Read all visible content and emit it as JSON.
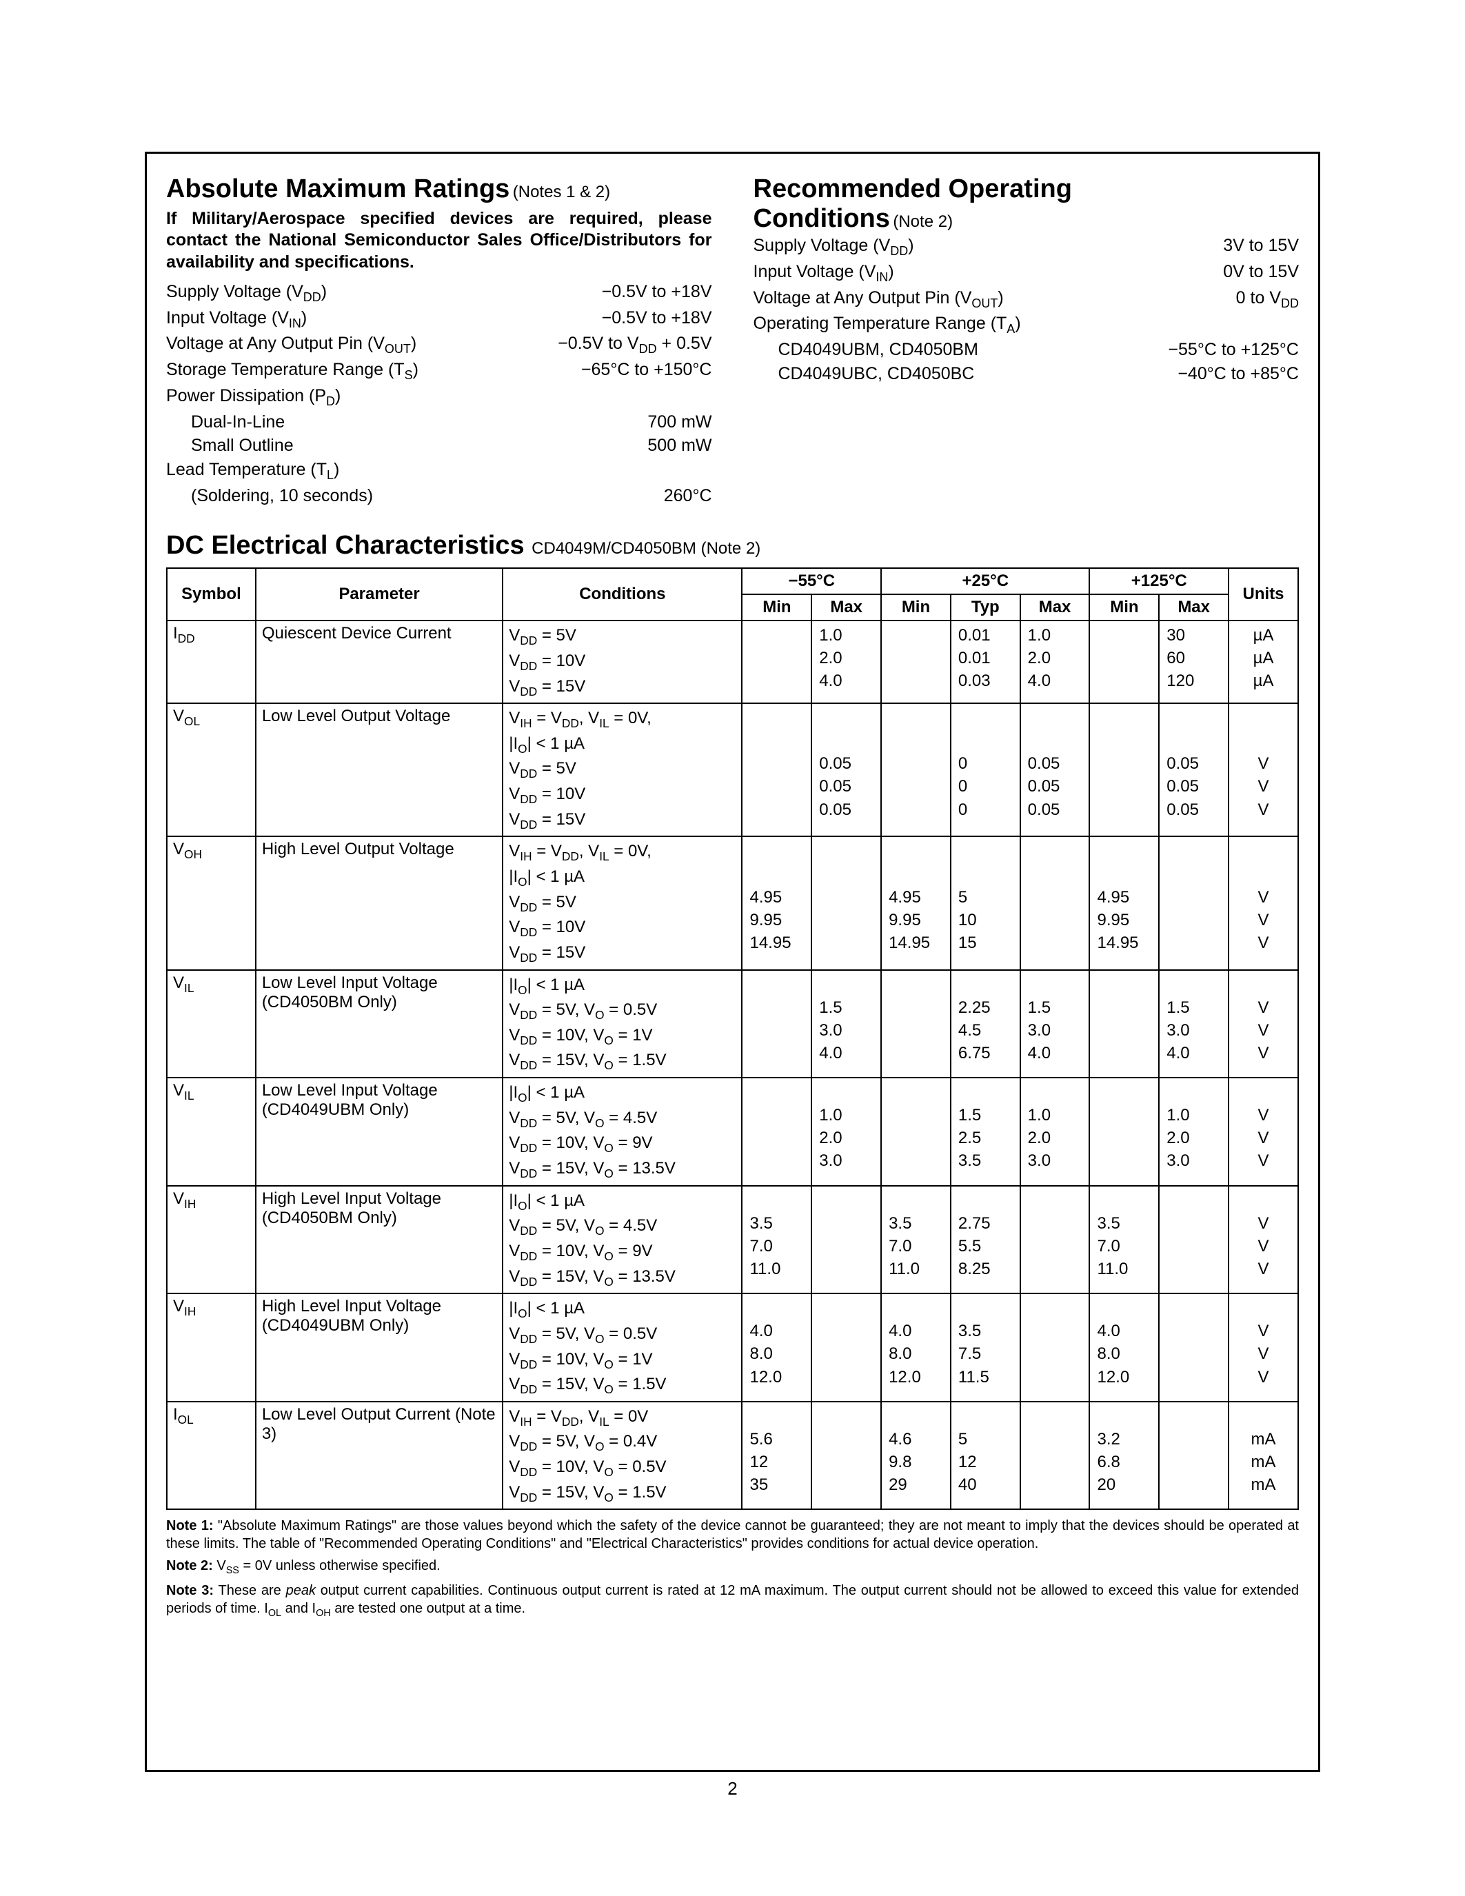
{
  "page_number": "2",
  "amr": {
    "title": "Absolute Maximum Ratings",
    "title_note": "(Notes 1 & 2)",
    "intro": "If Military/Aerospace specified devices are required, please contact the National Semiconductor Sales Office/Distributors for availability and specifications.",
    "rows": [
      {
        "k": "Supply Voltage (V",
        "ksub": "DD",
        "kend": ")",
        "v": "−0.5V to +18V"
      },
      {
        "k": "Input Voltage (V",
        "ksub": "IN",
        "kend": ")",
        "v": "−0.5V to +18V"
      },
      {
        "k": "Voltage at Any Output Pin (V",
        "ksub": "OUT",
        "kend": ")",
        "v": "−0.5V to V",
        "vsub": "DD",
        "vend": " + 0.5V"
      },
      {
        "k": "Storage Temperature Range (T",
        "ksub": "S",
        "kend": ")",
        "v": "−65°C to +150°C"
      },
      {
        "k": "Power Dissipation (P",
        "ksub": "D",
        "kend": ")",
        "v": ""
      },
      {
        "k": "Dual-In-Line",
        "indent": true,
        "v": "700 mW"
      },
      {
        "k": "Small Outline",
        "indent": true,
        "v": "500 mW"
      },
      {
        "k": "Lead Temperature (T",
        "ksub": "L",
        "kend": ")",
        "v": ""
      },
      {
        "k": "(Soldering, 10 seconds)",
        "indent": true,
        "v": "260°C"
      }
    ]
  },
  "roc": {
    "title": "Recommended Operating",
    "title2": "Conditions",
    "title_note": "(Note 2)",
    "rows": [
      {
        "k": "Supply Voltage (V",
        "ksub": "DD",
        "kend": ")",
        "v": "3V to 15V"
      },
      {
        "k": "Input Voltage (V",
        "ksub": "IN",
        "kend": ")",
        "v": "0V to 15V"
      },
      {
        "k": "Voltage at Any Output Pin (V",
        "ksub": "OUT",
        "kend": ")",
        "v": "0 to V",
        "vsub": "DD"
      },
      {
        "k": "Operating Temperature Range (T",
        "ksub": "A",
        "kend": ")",
        "v": ""
      },
      {
        "k": "CD4049UBM, CD4050BM",
        "indent": true,
        "v": "−55°C to +125°C"
      },
      {
        "k": "CD4049UBC, CD4050BC",
        "indent": true,
        "v": "−40°C to +85°C"
      }
    ]
  },
  "dc": {
    "title": "DC Electrical Characteristics",
    "title_note": "CD4049M/CD4050BM (Note 2)",
    "headers": {
      "symbol": "Symbol",
      "parameter": "Parameter",
      "conditions": "Conditions",
      "t1": "−55°C",
      "t2": "+25°C",
      "t3": "+125°C",
      "units": "Units",
      "min": "Min",
      "typ": "Typ",
      "max": "Max"
    },
    "rows": [
      {
        "sym": "I",
        "symsub": "DD",
        "param": "Quiescent Device Current",
        "cond": [
          {
            "t": "V",
            "s": "DD",
            "r": " = 5V"
          },
          {
            "t": "V",
            "s": "DD",
            "r": " = 10V"
          },
          {
            "t": "V",
            "s": "DD",
            "r": " = 15V"
          }
        ],
        "m55min": [
          "",
          "",
          ""
        ],
        "m55max": [
          "1.0",
          "2.0",
          "4.0"
        ],
        "p25min": [
          "",
          "",
          ""
        ],
        "p25typ": [
          "0.01",
          "0.01",
          "0.03"
        ],
        "p25max": [
          "1.0",
          "2.0",
          "4.0"
        ],
        "p125min": [
          "",
          "",
          ""
        ],
        "p125max": [
          "30",
          "60",
          "120"
        ],
        "units": [
          "µA",
          "µA",
          "µA"
        ]
      },
      {
        "sym": "V",
        "symsub": "OL",
        "param": "Low Level Output Voltage",
        "cond": [
          {
            "raw": "V<span class='sub'>IH</span> = V<span class='sub'>DD</span>, V<span class='sub'>IL</span> = 0V,"
          },
          {
            "raw": "|I<span class='sub'>O</span>| < 1 µA"
          },
          {
            "t": "V",
            "s": "DD",
            "r": " = 5V"
          },
          {
            "t": "V",
            "s": "DD",
            "r": " = 10V"
          },
          {
            "t": "V",
            "s": "DD",
            "r": " = 15V"
          }
        ],
        "m55min": [
          "",
          "",
          "",
          "",
          ""
        ],
        "m55max": [
          "",
          "",
          "0.05",
          "0.05",
          "0.05"
        ],
        "p25min": [
          "",
          "",
          "",
          "",
          ""
        ],
        "p25typ": [
          "",
          "",
          "0",
          "0",
          "0"
        ],
        "p25max": [
          "",
          "",
          "0.05",
          "0.05",
          "0.05"
        ],
        "p125min": [
          "",
          "",
          "",
          "",
          ""
        ],
        "p125max": [
          "",
          "",
          "0.05",
          "0.05",
          "0.05"
        ],
        "units": [
          "",
          "",
          "V",
          "V",
          "V"
        ]
      },
      {
        "sym": "V",
        "symsub": "OH",
        "param": "High Level Output Voltage",
        "cond": [
          {
            "raw": "V<span class='sub'>IH</span> = V<span class='sub'>DD</span>, V<span class='sub'>IL</span> = 0V,"
          },
          {
            "raw": "|I<span class='sub'>O</span>| < 1 µA"
          },
          {
            "t": "V",
            "s": "DD",
            "r": " = 5V"
          },
          {
            "t": "V",
            "s": "DD",
            "r": " = 10V"
          },
          {
            "t": "V",
            "s": "DD",
            "r": " = 15V"
          }
        ],
        "m55min": [
          "",
          "",
          "4.95",
          "9.95",
          "14.95"
        ],
        "m55max": [
          "",
          "",
          "",
          "",
          ""
        ],
        "p25min": [
          "",
          "",
          "4.95",
          "9.95",
          "14.95"
        ],
        "p25typ": [
          "",
          "",
          "5",
          "10",
          "15"
        ],
        "p25max": [
          "",
          "",
          "",
          "",
          ""
        ],
        "p125min": [
          "",
          "",
          "4.95",
          "9.95",
          "14.95"
        ],
        "p125max": [
          "",
          "",
          "",
          "",
          ""
        ],
        "units": [
          "",
          "",
          "V",
          "V",
          "V"
        ]
      },
      {
        "sym": "V",
        "symsub": "IL",
        "param": "Low Level Input Voltage (CD4050BM Only)",
        "cond": [
          {
            "raw": "|I<span class='sub'>O</span>| < 1 µA"
          },
          {
            "raw": "V<span class='sub'>DD</span> = 5V, V<span class='sub'>O</span> = 0.5V"
          },
          {
            "raw": "V<span class='sub'>DD</span> = 10V, V<span class='sub'>O</span> = 1V"
          },
          {
            "raw": "V<span class='sub'>DD</span> = 15V, V<span class='sub'>O</span> = 1.5V"
          }
        ],
        "m55min": [
          "",
          "",
          "",
          ""
        ],
        "m55max": [
          "",
          "1.5",
          "3.0",
          "4.0"
        ],
        "p25min": [
          "",
          "",
          "",
          ""
        ],
        "p25typ": [
          "",
          "2.25",
          "4.5",
          "6.75"
        ],
        "p25max": [
          "",
          "1.5",
          "3.0",
          "4.0"
        ],
        "p125min": [
          "",
          "",
          "",
          ""
        ],
        "p125max": [
          "",
          "1.5",
          "3.0",
          "4.0"
        ],
        "units": [
          "",
          "V",
          "V",
          "V"
        ]
      },
      {
        "sym": "V",
        "symsub": "IL",
        "param": "Low Level Input Voltage (CD4049UBM Only)",
        "cond": [
          {
            "raw": "|I<span class='sub'>O</span>| < 1 µA"
          },
          {
            "raw": "V<span class='sub'>DD</span> = 5V, V<span class='sub'>O</span> = 4.5V"
          },
          {
            "raw": "V<span class='sub'>DD</span> = 10V, V<span class='sub'>O</span> = 9V"
          },
          {
            "raw": "V<span class='sub'>DD</span> = 15V, V<span class='sub'>O</span> = 13.5V"
          }
        ],
        "m55min": [
          "",
          "",
          "",
          ""
        ],
        "m55max": [
          "",
          "1.0",
          "2.0",
          "3.0"
        ],
        "p25min": [
          "",
          "",
          "",
          ""
        ],
        "p25typ": [
          "",
          "1.5",
          "2.5",
          "3.5"
        ],
        "p25max": [
          "",
          "1.0",
          "2.0",
          "3.0"
        ],
        "p125min": [
          "",
          "",
          "",
          ""
        ],
        "p125max": [
          "",
          "1.0",
          "2.0",
          "3.0"
        ],
        "units": [
          "",
          "V",
          "V",
          "V"
        ]
      },
      {
        "sym": "V",
        "symsub": "IH",
        "param": "High Level Input Voltage (CD4050BM Only)",
        "cond": [
          {
            "raw": "|I<span class='sub'>O</span>| < 1 µA"
          },
          {
            "raw": "V<span class='sub'>DD</span> = 5V, V<span class='sub'>O</span> = 4.5V"
          },
          {
            "raw": "V<span class='sub'>DD</span> = 10V, V<span class='sub'>O</span> = 9V"
          },
          {
            "raw": "V<span class='sub'>DD</span> = 15V, V<span class='sub'>O</span> = 13.5V"
          }
        ],
        "m55min": [
          "",
          "3.5",
          "7.0",
          "11.0"
        ],
        "m55max": [
          "",
          "",
          "",
          ""
        ],
        "p25min": [
          "",
          "3.5",
          "7.0",
          "11.0"
        ],
        "p25typ": [
          "",
          "2.75",
          "5.5",
          "8.25"
        ],
        "p25max": [
          "",
          "",
          "",
          ""
        ],
        "p125min": [
          "",
          "3.5",
          "7.0",
          "11.0"
        ],
        "p125max": [
          "",
          "",
          "",
          ""
        ],
        "units": [
          "",
          "V",
          "V",
          "V"
        ]
      },
      {
        "sym": "V",
        "symsub": "IH",
        "param": "High Level Input Voltage (CD4049UBM Only)",
        "cond": [
          {
            "raw": "|I<span class='sub'>O</span>| < 1 µA"
          },
          {
            "raw": "V<span class='sub'>DD</span> = 5V, V<span class='sub'>O</span> = 0.5V"
          },
          {
            "raw": "V<span class='sub'>DD</span> = 10V, V<span class='sub'>O</span> = 1V"
          },
          {
            "raw": "V<span class='sub'>DD</span> = 15V, V<span class='sub'>O</span> = 1.5V"
          }
        ],
        "m55min": [
          "",
          "4.0",
          "8.0",
          "12.0"
        ],
        "m55max": [
          "",
          "",
          "",
          ""
        ],
        "p25min": [
          "",
          "4.0",
          "8.0",
          "12.0"
        ],
        "p25typ": [
          "",
          "3.5",
          "7.5",
          "11.5"
        ],
        "p25max": [
          "",
          "",
          "",
          ""
        ],
        "p125min": [
          "",
          "4.0",
          "8.0",
          "12.0"
        ],
        "p125max": [
          "",
          "",
          "",
          ""
        ],
        "units": [
          "",
          "V",
          "V",
          "V"
        ]
      },
      {
        "sym": "I",
        "symsub": "OL",
        "param": "Low Level Output Current (Note 3)",
        "cond": [
          {
            "raw": "V<span class='sub'>IH</span> = V<span class='sub'>DD</span>, V<span class='sub'>IL</span> = 0V"
          },
          {
            "raw": "V<span class='sub'>DD</span> = 5V, V<span class='sub'>O</span> = 0.4V"
          },
          {
            "raw": "V<span class='sub'>DD</span> = 10V, V<span class='sub'>O</span> = 0.5V"
          },
          {
            "raw": "V<span class='sub'>DD</span> = 15V, V<span class='sub'>O</span> = 1.5V"
          }
        ],
        "m55min": [
          "",
          "5.6",
          "12",
          "35"
        ],
        "m55max": [
          "",
          "",
          "",
          ""
        ],
        "p25min": [
          "",
          "4.6",
          "9.8",
          "29"
        ],
        "p25typ": [
          "",
          "5",
          "12",
          "40"
        ],
        "p25max": [
          "",
          "",
          "",
          ""
        ],
        "p125min": [
          "",
          "3.2",
          "6.8",
          "20"
        ],
        "p125max": [
          "",
          "",
          "",
          ""
        ],
        "units": [
          "",
          "mA",
          "mA",
          "mA"
        ]
      }
    ]
  },
  "notes": {
    "n1_label": "Note 1:",
    "n1": "\"Absolute Maximum Ratings\" are those values beyond which the safety of the device cannot be guaranteed; they are not meant to imply that the devices should be operated at these limits. The table of \"Recommended Operating Conditions\" and \"Electrical Characteristics\" provides conditions for actual device operation.",
    "n2_label": "Note 2:",
    "n2_pre": "V",
    "n2_sub": "SS",
    "n2_post": " = 0V unless otherwise specified.",
    "n3_label": "Note 3:",
    "n3_a": "These are ",
    "n3_i": "peak",
    "n3_b": " output current capabilities. Continuous output current is rated at 12 mA maximum. The output current should not be allowed to exceed this value for extended periods of time. I",
    "n3_s1": "OL",
    "n3_c": " and I",
    "n3_s2": "OH",
    "n3_d": " are tested one output at a time."
  }
}
